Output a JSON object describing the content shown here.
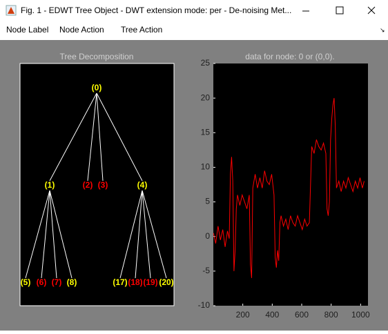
{
  "window": {
    "title": "Fig. 1 - EDWT Tree Object - DWT extension mode: per  -  De-noising Met..."
  },
  "menu": [
    "Node Label",
    "Node Action",
    "Tree Action"
  ],
  "tree": {
    "title": "Tree Decomposition",
    "nodes": [
      {
        "label": "(0)",
        "color": "#ffff00",
        "children": [
          1,
          2,
          3,
          4
        ]
      },
      {
        "label": "(1)",
        "color": "#ffff00",
        "children": [
          5,
          6,
          7,
          8
        ]
      },
      {
        "label": "(2)",
        "color": "#ff0000",
        "children": []
      },
      {
        "label": "(3)",
        "color": "#ff0000",
        "children": []
      },
      {
        "label": "(4)",
        "color": "#ffff00",
        "children": [
          9,
          10,
          11,
          12
        ]
      },
      {
        "label": "(5)",
        "color": "#ffff00",
        "children": []
      },
      {
        "label": "(6)",
        "color": "#ff0000",
        "children": []
      },
      {
        "label": "(7)",
        "color": "#ff0000",
        "children": []
      },
      {
        "label": "(8)",
        "color": "#ffff00",
        "children": []
      },
      {
        "label": "(17)",
        "color": "#ffff00",
        "children": []
      },
      {
        "label": "(18)",
        "color": "#ff0000",
        "children": []
      },
      {
        "label": "(19)",
        "color": "#ff0000",
        "children": []
      },
      {
        "label": "(20)",
        "color": "#ffff00",
        "children": []
      }
    ]
  },
  "chart_data": {
    "type": "line",
    "title": "data for node: 0 or (0,0).",
    "xlim": [
      0,
      1050
    ],
    "ylim": [
      -10,
      25
    ],
    "xticks": [
      200,
      400,
      600,
      800,
      1000
    ],
    "yticks": [
      -10,
      -5,
      0,
      5,
      10,
      15,
      20,
      25
    ],
    "series": [
      {
        "color": "#ff0000",
        "x": [
          1,
          16,
          32,
          48,
          64,
          80,
          96,
          108,
          116,
          124,
          132,
          140,
          148,
          156,
          164,
          180,
          196,
          212,
          228,
          244,
          252,
          260,
          268,
          284,
          300,
          316,
          332,
          348,
          364,
          380,
          396,
          412,
          420,
          428,
          436,
          444,
          452,
          460,
          476,
          492,
          508,
          524,
          540,
          556,
          572,
          588,
          604,
          620,
          636,
          652,
          668,
          684,
          700,
          716,
          732,
          748,
          764,
          772,
          780,
          788,
          796,
          804,
          812,
          820,
          828,
          836,
          852,
          868,
          884,
          900,
          916,
          932,
          948,
          964,
          980,
          996,
          1012,
          1024
        ],
        "values": [
          0.5,
          -1,
          1.5,
          -0.5,
          1,
          -1.5,
          0.8,
          -0.3,
          9,
          11.5,
          8,
          -5,
          -2,
          4,
          6,
          4.5,
          6,
          5,
          4,
          6,
          -4,
          -6,
          7,
          9,
          7,
          8.5,
          7,
          9.5,
          8,
          7.5,
          9,
          6,
          -3,
          -4.5,
          -2,
          -3.5,
          2,
          3,
          1.5,
          2.5,
          1,
          3,
          2,
          1.5,
          3,
          2,
          1,
          2.5,
          1.5,
          2,
          13,
          12,
          14,
          13,
          12.5,
          13.5,
          12,
          4,
          3,
          5,
          14,
          17,
          19,
          20,
          16,
          7,
          8,
          6.5,
          8,
          7,
          8.5,
          7.5,
          6.5,
          8,
          7,
          8.5,
          7,
          8
        ]
      }
    ]
  }
}
